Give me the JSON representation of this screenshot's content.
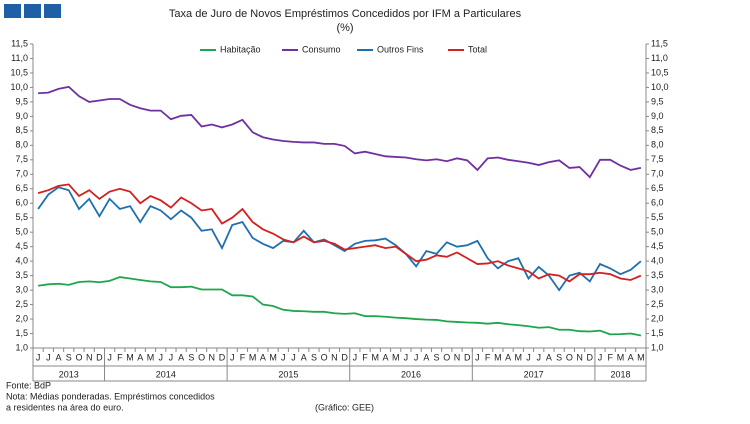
{
  "chart_data": {
    "type": "line",
    "title": "Taxa de Juro de Novos Empréstimos Concedidos por IFM a Particulares",
    "subtitle": "(%)",
    "categories": [
      "J",
      "J",
      "A",
      "S",
      "O",
      "N",
      "D",
      "J",
      "F",
      "M",
      "A",
      "M",
      "J",
      "J",
      "A",
      "S",
      "O",
      "N",
      "D",
      "J",
      "F",
      "M",
      "A",
      "M",
      "J",
      "J",
      "A",
      "S",
      "O",
      "N",
      "D",
      "J",
      "F",
      "M",
      "A",
      "M",
      "J",
      "J",
      "A",
      "S",
      "O",
      "N",
      "D",
      "J",
      "F",
      "M",
      "A",
      "M",
      "J",
      "J",
      "A",
      "S",
      "O",
      "N",
      "D",
      "J",
      "F",
      "M",
      "A",
      "M"
    ],
    "years": [
      "2013",
      "2014",
      "2015",
      "2016",
      "2017",
      "2018"
    ],
    "series": [
      {
        "name": "Habitação",
        "color": "#1fa64a",
        "values": [
          3.15,
          3.2,
          3.22,
          3.18,
          3.28,
          3.3,
          3.27,
          3.32,
          3.45,
          3.4,
          3.35,
          3.3,
          3.28,
          3.1,
          3.1,
          3.12,
          3.02,
          3.02,
          3.02,
          2.82,
          2.82,
          2.78,
          2.5,
          2.45,
          2.32,
          2.28,
          2.27,
          2.25,
          2.25,
          2.2,
          2.18,
          2.2,
          2.1,
          2.1,
          2.08,
          2.05,
          2.03,
          2.0,
          1.98,
          1.97,
          1.92,
          1.9,
          1.88,
          1.87,
          1.84,
          1.87,
          1.82,
          1.79,
          1.75,
          1.7,
          1.72,
          1.63,
          1.63,
          1.58,
          1.57,
          1.6,
          1.47,
          1.48,
          1.5,
          1.43
        ]
      },
      {
        "name": "Consumo",
        "color": "#7030a0",
        "values": [
          9.8,
          9.82,
          9.95,
          10.02,
          9.7,
          9.5,
          9.55,
          9.6,
          9.6,
          9.4,
          9.28,
          9.2,
          9.2,
          8.9,
          9.02,
          9.05,
          8.65,
          8.72,
          8.62,
          8.72,
          8.88,
          8.45,
          8.28,
          8.2,
          8.15,
          8.12,
          8.1,
          8.1,
          8.05,
          8.05,
          7.98,
          7.72,
          7.78,
          7.7,
          7.62,
          7.6,
          7.58,
          7.52,
          7.48,
          7.52,
          7.45,
          7.55,
          7.48,
          7.15,
          7.55,
          7.58,
          7.5,
          7.45,
          7.4,
          7.32,
          7.42,
          7.48,
          7.22,
          7.25,
          6.9,
          7.5,
          7.5,
          7.3,
          7.15,
          7.22
        ]
      },
      {
        "name": "Outros Fins",
        "color": "#1f6fb0",
        "values": [
          5.8,
          6.3,
          6.55,
          6.45,
          5.8,
          6.15,
          5.55,
          6.15,
          5.8,
          5.9,
          5.35,
          5.9,
          5.75,
          5.45,
          5.75,
          5.5,
          5.05,
          5.1,
          4.45,
          5.25,
          5.35,
          4.8,
          4.6,
          4.45,
          4.7,
          4.65,
          5.05,
          4.65,
          4.75,
          4.55,
          4.35,
          4.6,
          4.7,
          4.72,
          4.78,
          4.55,
          4.25,
          3.82,
          4.35,
          4.25,
          4.65,
          4.5,
          4.55,
          4.7,
          4.1,
          3.75,
          4.0,
          4.1,
          3.4,
          3.8,
          3.5,
          3.0,
          3.5,
          3.6,
          3.3,
          3.9,
          3.75,
          3.55,
          3.7,
          4.0
        ]
      },
      {
        "name": "Total",
        "color": "#d42020",
        "values": [
          6.35,
          6.45,
          6.6,
          6.65,
          6.25,
          6.45,
          6.15,
          6.4,
          6.5,
          6.4,
          6.0,
          6.25,
          6.1,
          5.85,
          6.2,
          6.0,
          5.75,
          5.8,
          5.3,
          5.5,
          5.8,
          5.35,
          5.1,
          4.95,
          4.75,
          4.65,
          4.85,
          4.65,
          4.7,
          4.6,
          4.4,
          4.45,
          4.5,
          4.55,
          4.45,
          4.5,
          4.25,
          4.0,
          4.05,
          4.2,
          4.15,
          4.3,
          4.1,
          3.9,
          3.92,
          4.0,
          3.85,
          3.75,
          3.65,
          3.4,
          3.55,
          3.5,
          3.3,
          3.55,
          3.55,
          3.6,
          3.55,
          3.4,
          3.35,
          3.5
        ]
      }
    ],
    "ylim": [
      1.0,
      11.5
    ],
    "yticks": [
      {
        "value": 1.0,
        "label": "1,0"
      },
      {
        "value": 1.5,
        "label": "1,5"
      },
      {
        "value": 2.0,
        "label": "2,0"
      },
      {
        "value": 2.5,
        "label": "2,5"
      },
      {
        "value": 3.0,
        "label": "3,0"
      },
      {
        "value": 3.5,
        "label": "3,5"
      },
      {
        "value": 4.0,
        "label": "4,0"
      },
      {
        "value": 4.5,
        "label": "4,5"
      },
      {
        "value": 5.0,
        "label": "5,0"
      },
      {
        "value": 5.5,
        "label": "5,5"
      },
      {
        "value": 6.0,
        "label": "6,0"
      },
      {
        "value": 6.5,
        "label": "6,5"
      },
      {
        "value": 7.0,
        "label": "7,0"
      },
      {
        "value": 7.5,
        "label": "7,5"
      },
      {
        "value": 8.0,
        "label": "8,0"
      },
      {
        "value": 8.5,
        "label": "8,5"
      },
      {
        "value": 9.0,
        "label": "9,0"
      },
      {
        "value": 9.5,
        "label": "9,5"
      },
      {
        "value": 10.0,
        "label": "10,0"
      },
      {
        "value": 10.5,
        "label": "10,5"
      },
      {
        "value": 11.0,
        "label": "11,0"
      },
      {
        "value": 11.5,
        "label": "11,5"
      }
    ],
    "y2lim": [
      1.0,
      11.5
    ],
    "y2ticks": [
      {
        "value": 1.0,
        "label": "1,0"
      },
      {
        "value": 1.5,
        "label": "1,5"
      },
      {
        "value": 2.0,
        "label": "2,0"
      },
      {
        "value": 2.5,
        "label": "2,5"
      },
      {
        "value": 3.0,
        "label": "3,0"
      },
      {
        "value": 3.5,
        "label": "3,5"
      },
      {
        "value": 4.0,
        "label": "4,0"
      },
      {
        "value": 4.5,
        "label": "4,5"
      },
      {
        "value": 5.0,
        "label": "5,0"
      },
      {
        "value": 5.5,
        "label": "5,5"
      },
      {
        "value": 6.0,
        "label": "6,0"
      },
      {
        "value": 6.5,
        "label": "6,5"
      },
      {
        "value": 7.0,
        "label": "7,0"
      },
      {
        "value": 7.5,
        "label": "7,5"
      },
      {
        "value": 8.0,
        "label": "8,0"
      },
      {
        "value": 8.5,
        "label": "8,5"
      },
      {
        "value": 9.0,
        "label": "9,0"
      },
      {
        "value": 9.5,
        "label": "9,5"
      },
      {
        "value": 10.0,
        "label": "10,0"
      },
      {
        "value": 10.5,
        "label": "10,5"
      },
      {
        "value": 11.0,
        "label": "11,0"
      },
      {
        "value": 11.5,
        "label": "11,5"
      }
    ],
    "legend": "top",
    "grid": false,
    "notes": [
      "Fonte: BdP",
      "Nota: Médias ponderadas.  Empréstimos concedidos",
      "a residentes na área do euro."
    ],
    "credit": "(Gráfico: GEE)"
  }
}
